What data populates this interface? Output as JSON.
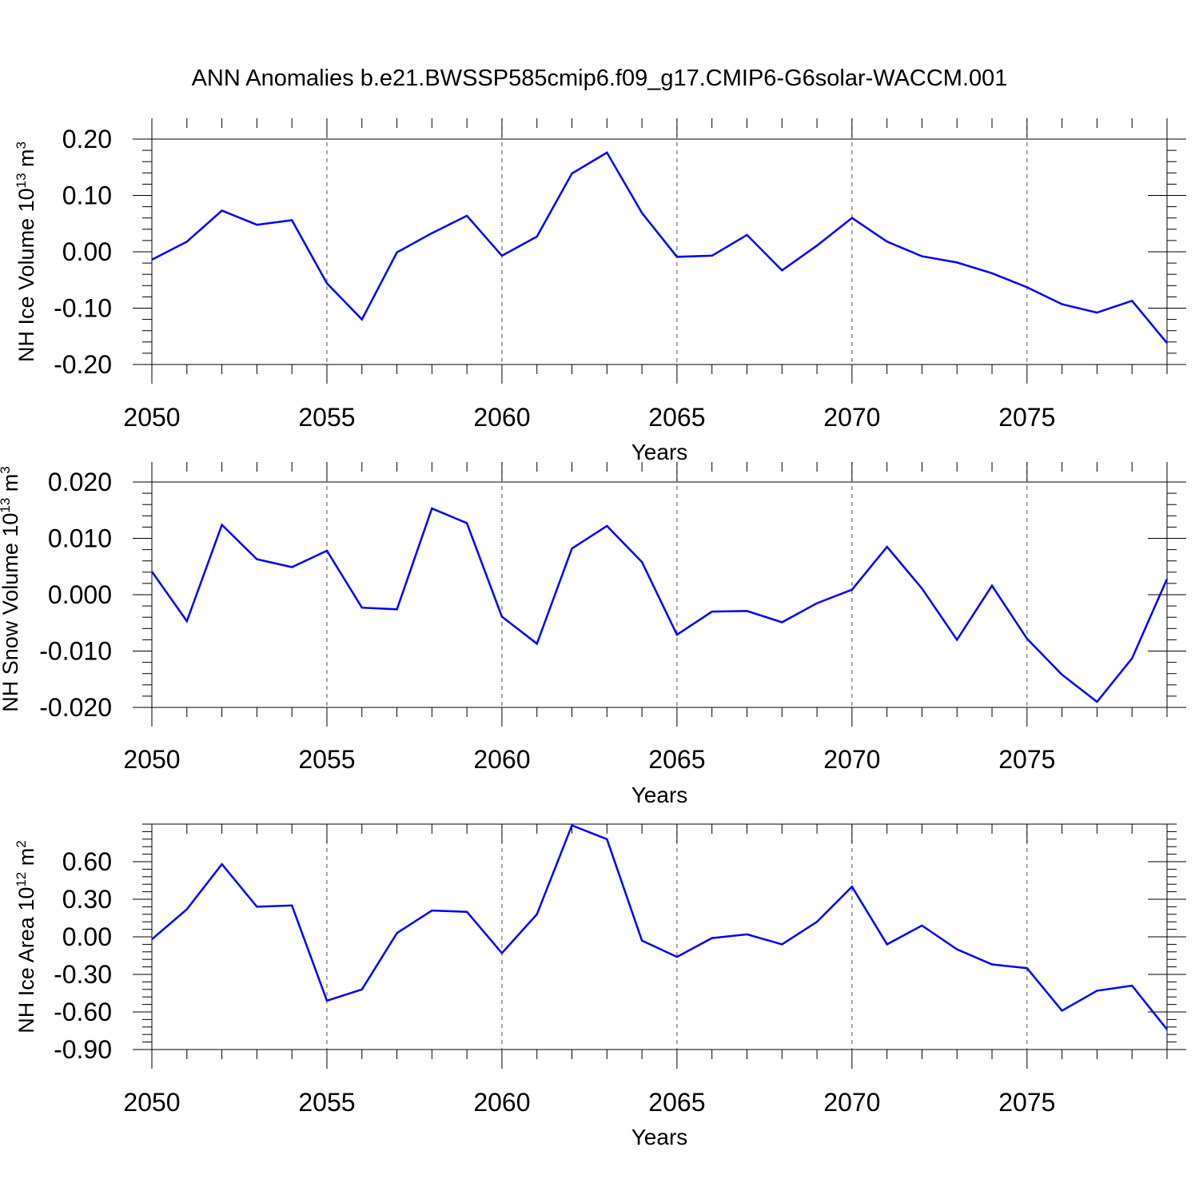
{
  "title": "ANN Anomalies b.e21.BWSSP585cmip6.f09_g17.CMIP6-G6solar-WACCM.001",
  "line_color": "#0000ff",
  "chart_data": [
    {
      "type": "line",
      "ylabel": "NH Ice Volume 10",
      "ylabel_sup": "13",
      "ylabel_unit": "m",
      "ylabel_unit_sup": "3",
      "xlabel": "Years",
      "xlim": [
        2050,
        2079
      ],
      "ylim": [
        -0.2,
        0.2
      ],
      "yticks": [
        0.2,
        0.1,
        0.0,
        -0.1,
        -0.2
      ],
      "ytick_labels": [
        "0.20",
        "0.10",
        "0.00",
        "-0.10",
        "-0.20"
      ],
      "xticks": [
        2050,
        2055,
        2060,
        2065,
        2070,
        2075
      ],
      "xtick_labels": [
        "2050",
        "2055",
        "2060",
        "2065",
        "2070",
        "2075"
      ],
      "x": [
        2050,
        2051,
        2052,
        2053,
        2054,
        2055,
        2056,
        2057,
        2058,
        2059,
        2060,
        2061,
        2062,
        2063,
        2064,
        2065,
        2066,
        2067,
        2068,
        2069,
        2070,
        2071,
        2072,
        2073,
        2074,
        2075,
        2076,
        2077,
        2078,
        2079
      ],
      "values": [
        -0.014,
        0.018,
        0.073,
        0.048,
        0.056,
        -0.056,
        -0.12,
        -0.001,
        0.033,
        0.064,
        -0.007,
        0.027,
        0.139,
        0.176,
        0.069,
        -0.009,
        -0.007,
        0.03,
        -0.033,
        0.011,
        0.06,
        0.018,
        -0.008,
        -0.019,
        -0.038,
        -0.063,
        -0.093,
        -0.108,
        -0.087,
        -0.162
      ]
    },
    {
      "type": "line",
      "ylabel": "NH Snow Volume 10",
      "ylabel_sup": "13",
      "ylabel_unit": "m",
      "ylabel_unit_sup": "3",
      "xlabel": "Years",
      "xlim": [
        2050,
        2079
      ],
      "ylim": [
        -0.02,
        0.02
      ],
      "yticks": [
        0.02,
        0.01,
        0.0,
        -0.01,
        -0.02
      ],
      "ytick_labels": [
        "0.020",
        "0.010",
        "0.000",
        "-0.010",
        "-0.020"
      ],
      "xticks": [
        2050,
        2055,
        2060,
        2065,
        2070,
        2075
      ],
      "xtick_labels": [
        "2050",
        "2055",
        "2060",
        "2065",
        "2070",
        "2075"
      ],
      "x": [
        2050,
        2051,
        2052,
        2053,
        2054,
        2055,
        2056,
        2057,
        2058,
        2059,
        2060,
        2061,
        2062,
        2063,
        2064,
        2065,
        2066,
        2067,
        2068,
        2069,
        2070,
        2071,
        2072,
        2073,
        2074,
        2075,
        2076,
        2077,
        2078,
        2079
      ],
      "values": [
        0.0041,
        -0.0047,
        0.0124,
        0.0063,
        0.0049,
        0.0078,
        -0.0023,
        -0.0026,
        0.0153,
        0.0127,
        -0.0039,
        -0.0087,
        0.0082,
        0.0122,
        0.0058,
        -0.0071,
        -0.003,
        -0.0029,
        -0.0049,
        -0.0015,
        0.0009,
        0.0085,
        0.0011,
        -0.008,
        0.0016,
        -0.0078,
        -0.0142,
        -0.019,
        -0.0113,
        0.0028
      ]
    },
    {
      "type": "line",
      "ylabel": "NH Ice Area 10",
      "ylabel_sup": "12",
      "ylabel_unit": "m",
      "ylabel_unit_sup": "2",
      "xlabel": "Years",
      "xlim": [
        2050,
        2079
      ],
      "ylim": [
        -0.9,
        0.9
      ],
      "yticks": [
        0.6,
        0.3,
        0.0,
        -0.3,
        -0.6,
        -0.9
      ],
      "ytick_labels": [
        "0.60",
        "0.30",
        "0.00",
        "-0.30",
        "-0.60",
        "-0.90"
      ],
      "xticks": [
        2050,
        2055,
        2060,
        2065,
        2070,
        2075
      ],
      "xtick_labels": [
        "2050",
        "2055",
        "2060",
        "2065",
        "2070",
        "2075"
      ],
      "x": [
        2050,
        2051,
        2052,
        2053,
        2054,
        2055,
        2056,
        2057,
        2058,
        2059,
        2060,
        2061,
        2062,
        2063,
        2064,
        2065,
        2066,
        2067,
        2068,
        2069,
        2070,
        2071,
        2072,
        2073,
        2074,
        2075,
        2076,
        2077,
        2078,
        2079
      ],
      "values": [
        -0.02,
        0.22,
        0.58,
        0.24,
        0.25,
        -0.51,
        -0.42,
        0.03,
        0.21,
        0.2,
        -0.13,
        0.18,
        0.89,
        0.78,
        -0.03,
        -0.16,
        -0.01,
        0.02,
        -0.06,
        0.12,
        0.4,
        -0.06,
        0.09,
        -0.1,
        -0.22,
        -0.25,
        -0.59,
        -0.43,
        -0.39,
        -0.74
      ]
    }
  ]
}
